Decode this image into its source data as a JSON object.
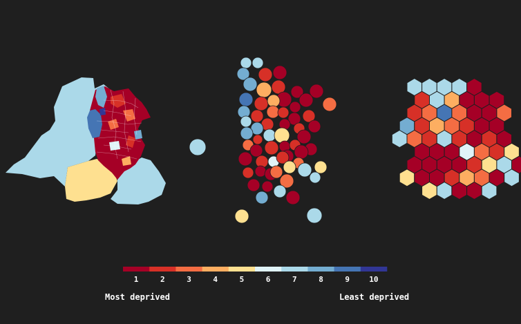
{
  "background": "#1f1f1f",
  "palette": [
    "#a50026",
    "#d73027",
    "#f46d43",
    "#fdae61",
    "#fee090",
    "#e0f3f8",
    "#abd9e9",
    "#74add1",
    "#4575b4",
    "#313695"
  ],
  "legend": {
    "ticks": [
      "1",
      "2",
      "3",
      "4",
      "5",
      "6",
      "7",
      "8",
      "9",
      "10"
    ],
    "left_label": "Most deprived",
    "right_label": "Least deprived"
  },
  "maps": {
    "geographic": "choropleth",
    "dorling": "circle cartogram",
    "hex": "hexagon cartogram"
  },
  "hex_grid": {
    "rows": [
      [
        0,
        0,
        7,
        7,
        7,
        7,
        1
      ],
      [
        0,
        0,
        2,
        7,
        4,
        1,
        1,
        1
      ],
      [
        0,
        0,
        2,
        3,
        9,
        3,
        1,
        1,
        3
      ],
      [
        0,
        8,
        2,
        4,
        3,
        2,
        1,
        1
      ],
      [
        0,
        7,
        3,
        2,
        7,
        2,
        1,
        2,
        1
      ],
      [
        0,
        0,
        1,
        1,
        1,
        6,
        3,
        2,
        5
      ],
      [
        0,
        0,
        1,
        1,
        1,
        1,
        2,
        5,
        7,
        1
      ],
      [
        0,
        5,
        1,
        1,
        2,
        4,
        3,
        1,
        7
      ],
      [
        0,
        0,
        0,
        5,
        7,
        1,
        1,
        7
      ]
    ]
  },
  "dorling_circles": [
    [
      356,
      91,
      8,
      7
    ],
    [
      373,
      91,
      8,
      7
    ],
    [
      352,
      107,
      9,
      8
    ],
    [
      384,
      108,
      10,
      2
    ],
    [
      405,
      105,
      10,
      1
    ],
    [
      362,
      122,
      10,
      8
    ],
    [
      403,
      126,
      10,
      2
    ],
    [
      382,
      130,
      11,
      4
    ],
    [
      430,
      133,
      9,
      1
    ],
    [
      458,
      132,
      10,
      1
    ],
    [
      356,
      144,
      10,
      9
    ],
    [
      378,
      150,
      10,
      2
    ],
    [
      411,
      144,
      11,
      1
    ],
    [
      443,
      145,
      10,
      1
    ],
    [
      396,
      146,
      9,
      4
    ],
    [
      477,
      151,
      10,
      3
    ],
    [
      353,
      162,
      9,
      8
    ],
    [
      395,
      162,
      9,
      3
    ],
    [
      410,
      163,
      8,
      2
    ],
    [
      427,
      155,
      8,
      1
    ],
    [
      372,
      168,
      9,
      2
    ],
    [
      426,
      172,
      9,
      1
    ],
    [
      447,
      168,
      9,
      2
    ],
    [
      387,
      180,
      9,
      2
    ],
    [
      356,
      176,
      8,
      7
    ],
    [
      412,
      180,
      8,
      1
    ],
    [
      372,
      186,
      9,
      8
    ],
    [
      433,
      186,
      8,
      2
    ],
    [
      455,
      183,
      9,
      1
    ],
    [
      357,
      193,
      9,
      8
    ],
    [
      390,
      196,
      9,
      7
    ],
    [
      408,
      196,
      11,
      5
    ],
    [
      440,
      198,
      10,
      1
    ],
    [
      359,
      210,
      8,
      3
    ],
    [
      373,
      202,
      7,
      2
    ],
    [
      393,
      214,
      10,
      2
    ],
    [
      371,
      218,
      9,
      1
    ],
    [
      412,
      212,
      8,
      1
    ],
    [
      427,
      210,
      8,
      2
    ],
    [
      450,
      216,
      9,
      1
    ],
    [
      416,
      226,
      9,
      1
    ],
    [
      436,
      220,
      10,
      1
    ],
    [
      355,
      230,
      10,
      1
    ],
    [
      379,
      234,
      9,
      2
    ],
    [
      396,
      234,
      8,
      6
    ],
    [
      409,
      228,
      9,
      2
    ],
    [
      432,
      236,
      8,
      3
    ],
    [
      359,
      250,
      8,
      2
    ],
    [
      377,
      248,
      8,
      1
    ],
    [
      392,
      252,
      9,
      1
    ],
    [
      419,
      242,
      9,
      5
    ],
    [
      441,
      246,
      10,
      7
    ],
    [
      464,
      242,
      9,
      5
    ],
    [
      400,
      249,
      9,
      3
    ],
    [
      415,
      262,
      10,
      3
    ],
    [
      367,
      268,
      9,
      1
    ],
    [
      387,
      270,
      8,
      1
    ],
    [
      405,
      277,
      9,
      7
    ],
    [
      456,
      257,
      8,
      7
    ],
    [
      379,
      286,
      9,
      8
    ],
    [
      424,
      286,
      10,
      1
    ],
    [
      350,
      313,
      10,
      5
    ],
    [
      455,
      312,
      11,
      7
    ],
    [
      286,
      213,
      12,
      7
    ]
  ]
}
